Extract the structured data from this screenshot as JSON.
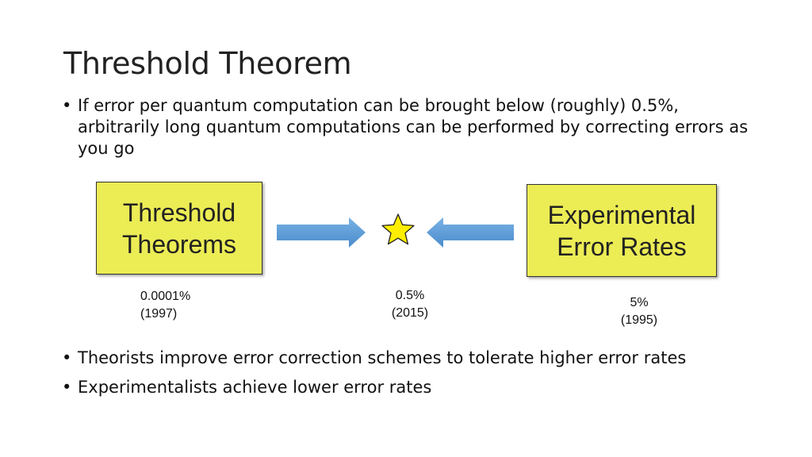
{
  "slide": {
    "title": "Threshold Theorem",
    "bullets_top": [
      {
        "marker": "•",
        "text": "If error per quantum computation can be brought below (roughly) 0.5%, arbitrarily long quantum computations can be performed by correcting errors as you go"
      }
    ],
    "diagram": {
      "left_box": {
        "line1": "Threshold",
        "line2": "Theorems",
        "color": "#ecec55"
      },
      "right_box": {
        "line1": "Experimental",
        "line2": "Error Rates",
        "color": "#ecec55"
      },
      "arrow_color": "#5b9bd5",
      "star_color": "#ffee00",
      "labels": {
        "left": {
          "value": "0.0001%",
          "year": "(1997)"
        },
        "middle": {
          "value": "0.5%",
          "year": "(2015)"
        },
        "right": {
          "value": "5%",
          "year": "(1995)"
        }
      }
    },
    "bullets_bottom": [
      {
        "marker": "•",
        "text": "Theorists improve error correction schemes to tolerate higher error rates"
      },
      {
        "marker": "•",
        "text": "Experimentalists achieve lower error rates"
      }
    ]
  }
}
